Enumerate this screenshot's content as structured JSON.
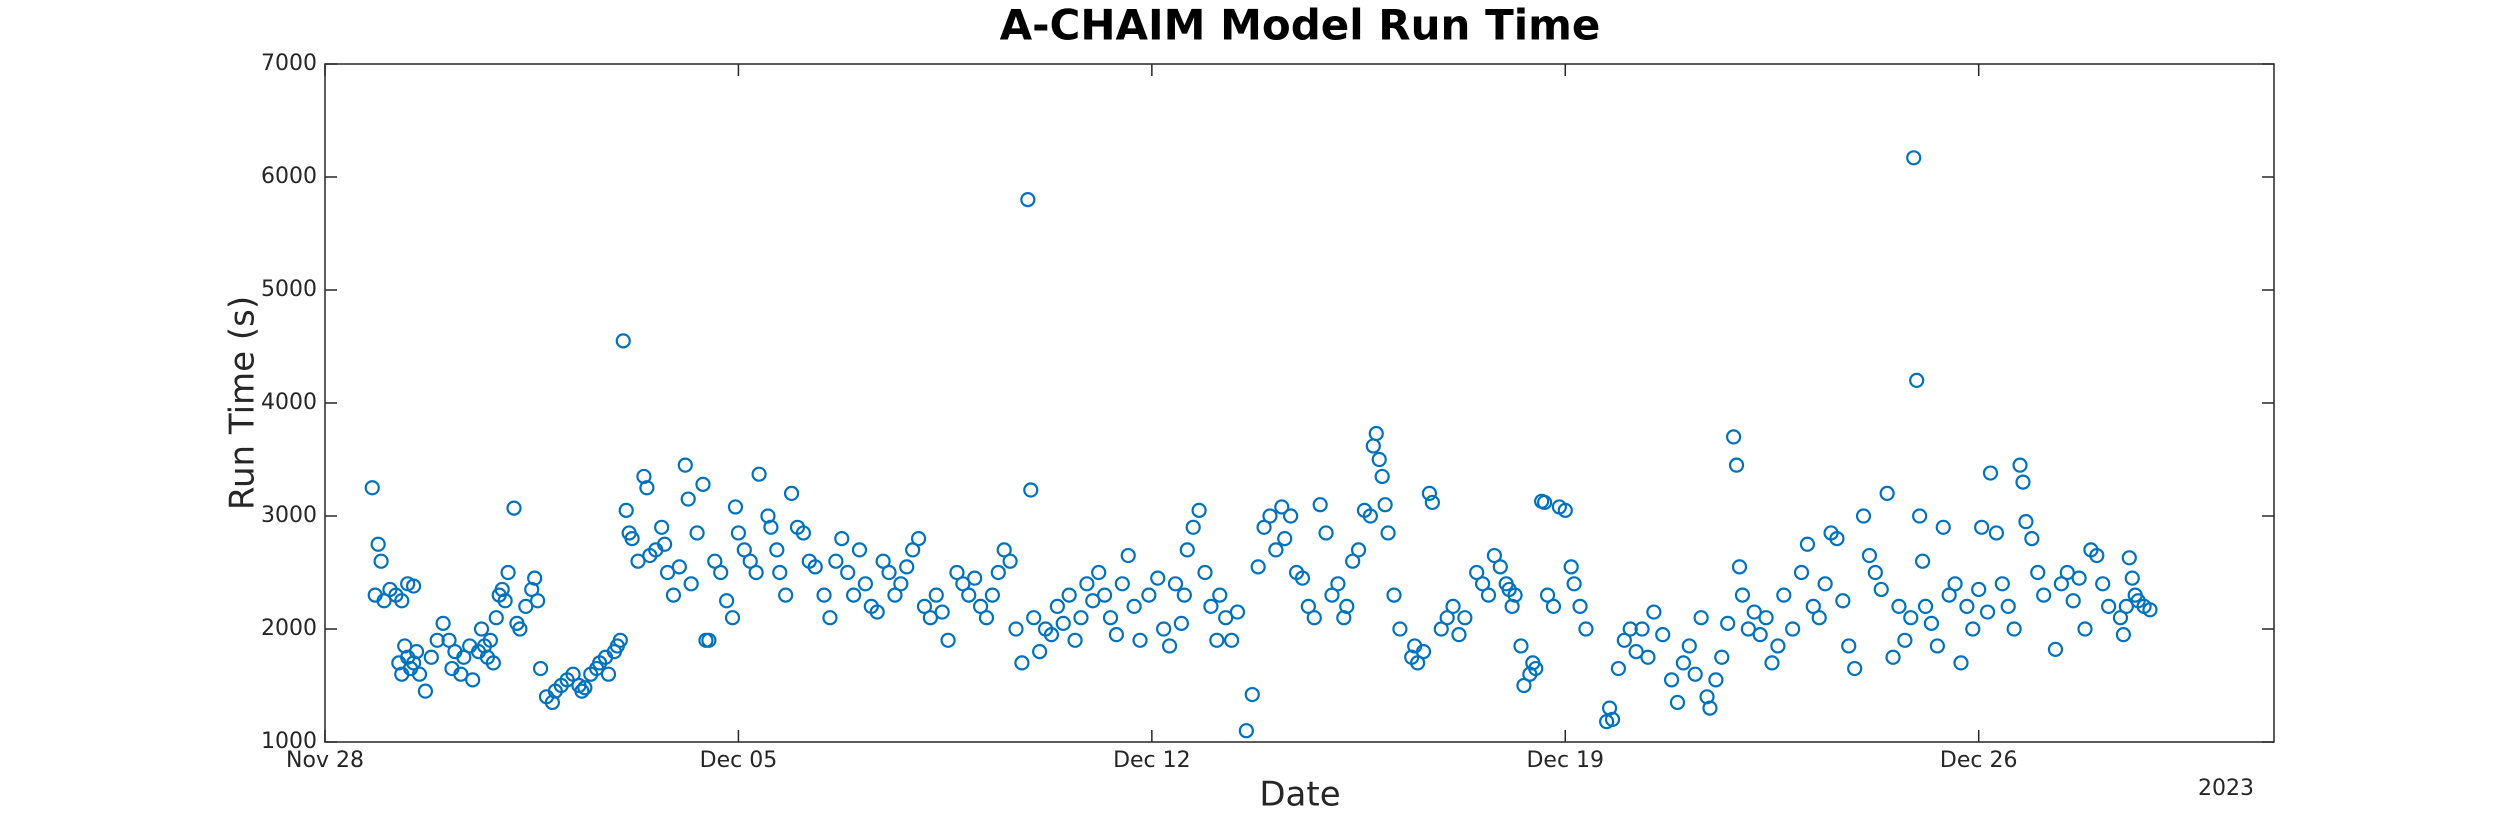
{
  "chart_data": {
    "type": "scatter",
    "title": "A-CHAIM Model Run Time",
    "xlabel": "Date",
    "ylabel": "Run Time (s)",
    "x_year_label": "2023",
    "color": "#0072bd",
    "xlim": [
      0,
      33
    ],
    "xticks": [
      {
        "value": 0,
        "label": "Nov 28"
      },
      {
        "value": 7,
        "label": "Dec 05"
      },
      {
        "value": 14,
        "label": "Dec 12"
      },
      {
        "value": 21,
        "label": "Dec 19"
      },
      {
        "value": 28,
        "label": "Dec 26"
      }
    ],
    "ylim": [
      1000,
      7000
    ],
    "yticks": [
      1000,
      2000,
      3000,
      4000,
      5000,
      6000,
      7000
    ],
    "x": [
      0.8,
      0.85,
      0.9,
      0.95,
      1.0,
      1.1,
      1.2,
      1.3,
      1.4,
      1.5,
      1.25,
      1.3,
      1.35,
      1.4,
      1.45,
      1.5,
      1.55,
      1.6,
      1.7,
      1.8,
      1.9,
      2.0,
      2.1,
      2.15,
      2.2,
      2.3,
      2.35,
      2.45,
      2.5,
      2.6,
      2.65,
      2.7,
      2.75,
      2.8,
      2.85,
      2.9,
      2.95,
      3.0,
      3.05,
      3.1,
      3.2,
      3.25,
      3.3,
      3.4,
      3.5,
      3.55,
      3.6,
      3.65,
      3.75,
      3.85,
      3.9,
      4.0,
      4.1,
      4.2,
      4.3,
      4.35,
      4.4,
      4.5,
      4.6,
      4.65,
      4.75,
      4.8,
      4.9,
      4.95,
      5.0,
      5.05,
      5.1,
      5.15,
      5.2,
      5.3,
      5.4,
      5.45,
      5.5,
      5.6,
      5.7,
      5.75,
      5.8,
      5.9,
      6.0,
      6.1,
      6.15,
      6.2,
      6.3,
      6.4,
      6.45,
      6.5,
      6.6,
      6.7,
      6.8,
      6.9,
      6.95,
      7.0,
      7.1,
      7.2,
      7.3,
      7.35,
      7.5,
      7.55,
      7.65,
      7.7,
      7.8,
      7.9,
      8.0,
      8.1,
      8.2,
      8.3,
      8.45,
      8.55,
      8.65,
      8.75,
      8.85,
      8.95,
      9.05,
      9.15,
      9.25,
      9.35,
      9.45,
      9.55,
      9.65,
      9.75,
      9.85,
      9.95,
      10.05,
      10.15,
      10.25,
      10.35,
      10.45,
      10.55,
      10.7,
      10.8,
      10.9,
      11.0,
      11.1,
      11.2,
      11.3,
      11.4,
      11.5,
      11.6,
      11.7,
      11.8,
      11.9,
      11.95,
      12.0,
      12.1,
      12.2,
      12.3,
      12.4,
      12.5,
      12.6,
      12.7,
      12.8,
      12.9,
      13.0,
      13.1,
      13.2,
      13.3,
      13.4,
      13.5,
      13.6,
      13.7,
      13.8,
      13.95,
      14.1,
      14.2,
      14.3,
      14.4,
      14.5,
      14.55,
      14.6,
      14.7,
      14.8,
      14.9,
      15.0,
      15.1,
      15.15,
      15.25,
      15.35,
      15.45,
      15.6,
      15.7,
      15.8,
      15.9,
      16.0,
      16.1,
      16.2,
      16.25,
      16.35,
      16.45,
      16.55,
      16.65,
      16.75,
      16.85,
      16.95,
      17.05,
      17.15,
      17.25,
      17.3,
      17.4,
      17.5,
      17.6,
      17.7,
      17.75,
      17.8,
      17.85,
      17.9,
      17.95,
      18.0,
      18.1,
      18.2,
      18.4,
      18.45,
      18.5,
      18.6,
      18.7,
      18.75,
      18.9,
      19.0,
      19.1,
      19.2,
      19.3,
      19.5,
      19.6,
      19.7,
      19.8,
      19.9,
      20.0,
      20.05,
      20.1,
      20.15,
      20.25,
      20.3,
      20.4,
      20.45,
      20.5,
      20.6,
      20.65,
      20.7,
      20.8,
      20.9,
      21.0,
      21.1,
      21.15,
      21.25,
      21.35,
      21.7,
      21.75,
      21.8,
      21.9,
      22.0,
      22.1,
      22.2,
      22.3,
      22.4,
      22.5,
      22.65,
      22.8,
      22.9,
      23.0,
      23.1,
      23.2,
      23.3,
      23.4,
      23.45,
      23.55,
      23.65,
      23.75,
      23.85,
      23.9,
      23.95,
      24.0,
      24.1,
      24.2,
      24.3,
      24.4,
      24.5,
      24.6,
      24.7,
      24.85,
      25.0,
      25.1,
      25.2,
      25.3,
      25.4,
      25.5,
      25.6,
      25.7,
      25.8,
      25.9,
      26.05,
      26.15,
      26.25,
      26.35,
      26.45,
      26.55,
      26.65,
      26.75,
      26.85,
      26.9,
      26.95,
      27.0,
      27.05,
      27.1,
      27.2,
      27.3,
      27.4,
      27.5,
      27.6,
      27.7,
      27.8,
      27.9,
      28.0,
      28.05,
      28.15,
      28.2,
      28.3,
      28.4,
      28.5,
      28.6,
      28.7,
      28.75,
      28.8,
      28.9,
      29.0,
      29.1,
      29.3,
      29.4,
      29.5,
      29.6,
      29.7,
      29.8,
      29.9,
      30.0,
      30.1,
      30.2,
      30.4,
      30.45,
      30.5,
      30.55,
      30.6,
      30.65,
      30.7,
      30.8,
      30.9
    ],
    "values": [
      3250,
      2300,
      2750,
      2600,
      2250,
      2350,
      2300,
      2250,
      2400,
      2380,
      1700,
      1600,
      1850,
      1750,
      1650,
      1700,
      1800,
      1600,
      1450,
      1750,
      1900,
      2050,
      1900,
      1650,
      1800,
      1600,
      1750,
      1850,
      1550,
      1800,
      2000,
      1850,
      1750,
      1900,
      1700,
      2100,
      2300,
      2350,
      2250,
      2500,
      3070,
      2050,
      2000,
      2200,
      2350,
      2450,
      2250,
      1650,
      1400,
      1350,
      1450,
      1500,
      1550,
      1600,
      1500,
      1450,
      1480,
      1600,
      1650,
      1700,
      1750,
      1600,
      1800,
      1850,
      1900,
      4550,
      3050,
      2850,
      2800,
      2600,
      3350,
      3250,
      2650,
      2700,
      2900,
      2750,
      2500,
      2300,
      2550,
      3450,
      3150,
      2400,
      2850,
      3280,
      1900,
      1900,
      2600,
      2500,
      2250,
      2100,
      3080,
      2850,
      2700,
      2600,
      2500,
      3370,
      3000,
      2900,
      2700,
      2500,
      2300,
      3200,
      2900,
      2850,
      2600,
      2550,
      2300,
      2100,
      2600,
      2800,
      2500,
      2300,
      2700,
      2400,
      2200,
      2150,
      2600,
      2500,
      2300,
      2400,
      2550,
      2700,
      2800,
      2200,
      2100,
      2300,
      2150,
      1900,
      2500,
      2400,
      2300,
      2450,
      2200,
      2100,
      2300,
      2500,
      2700,
      2600,
      2000,
      1700,
      5800,
      3230,
      2100,
      1800,
      2000,
      1950,
      2200,
      2050,
      2300,
      1900,
      2100,
      2400,
      2250,
      2500,
      2300,
      2100,
      1950,
      2400,
      2650,
      2200,
      1900,
      2300,
      2450,
      2000,
      1850,
      2400,
      2050,
      2300,
      2700,
      2900,
      3050,
      2500,
      2200,
      1900,
      2300,
      2100,
      1900,
      2150,
      1100,
      1420,
      2550,
      2900,
      3000,
      2700,
      3080,
      2800,
      3000,
      2500,
      2450,
      2200,
      2100,
      3100,
      2850,
      2300,
      2400,
      2100,
      2200,
      2600,
      2700,
      3050,
      3000,
      3620,
      3730,
      3500,
      3350,
      3100,
      2850,
      2300,
      2000,
      1750,
      1850,
      1700,
      1800,
      3200,
      3120,
      2000,
      2100,
      2200,
      1950,
      2100,
      2500,
      2400,
      2300,
      2650,
      2550,
      2400,
      2350,
      2200,
      2300,
      1850,
      1500,
      1600,
      1700,
      1650,
      3130,
      3120,
      2300,
      2200,
      3080,
      3050,
      2550,
      2400,
      2200,
      2000,
      1180,
      1300,
      1200,
      1650,
      1900,
      2000,
      1800,
      2000,
      1750,
      2150,
      1950,
      1550,
      1350,
      1700,
      1850,
      1600,
      2100,
      1400,
      1300,
      1550,
      1750,
      2050,
      3700,
      3450,
      2550,
      2300,
      2000,
      2150,
      1950,
      2100,
      1700,
      1850,
      2300,
      2000,
      2500,
      2750,
      2200,
      2100,
      2400,
      2850,
      2800,
      2250,
      1850,
      1650,
      3000,
      2650,
      2500,
      2350,
      3200,
      1750,
      2200,
      1900,
      2100,
      6170,
      4200,
      3000,
      2600,
      2200,
      2050,
      1850,
      2900,
      2300,
      2400,
      1700,
      2200,
      2000,
      2350,
      2900,
      2150,
      3380,
      2850,
      2400,
      2200,
      2000,
      3450,
      3300,
      2950,
      2800,
      2500,
      2300,
      1820,
      2400,
      2500,
      2250,
      2450,
      2000,
      2700,
      2650,
      2400,
      2200,
      2100,
      1950,
      2200,
      2630,
      2450,
      2300,
      2250,
      2200,
      2170
    ]
  }
}
